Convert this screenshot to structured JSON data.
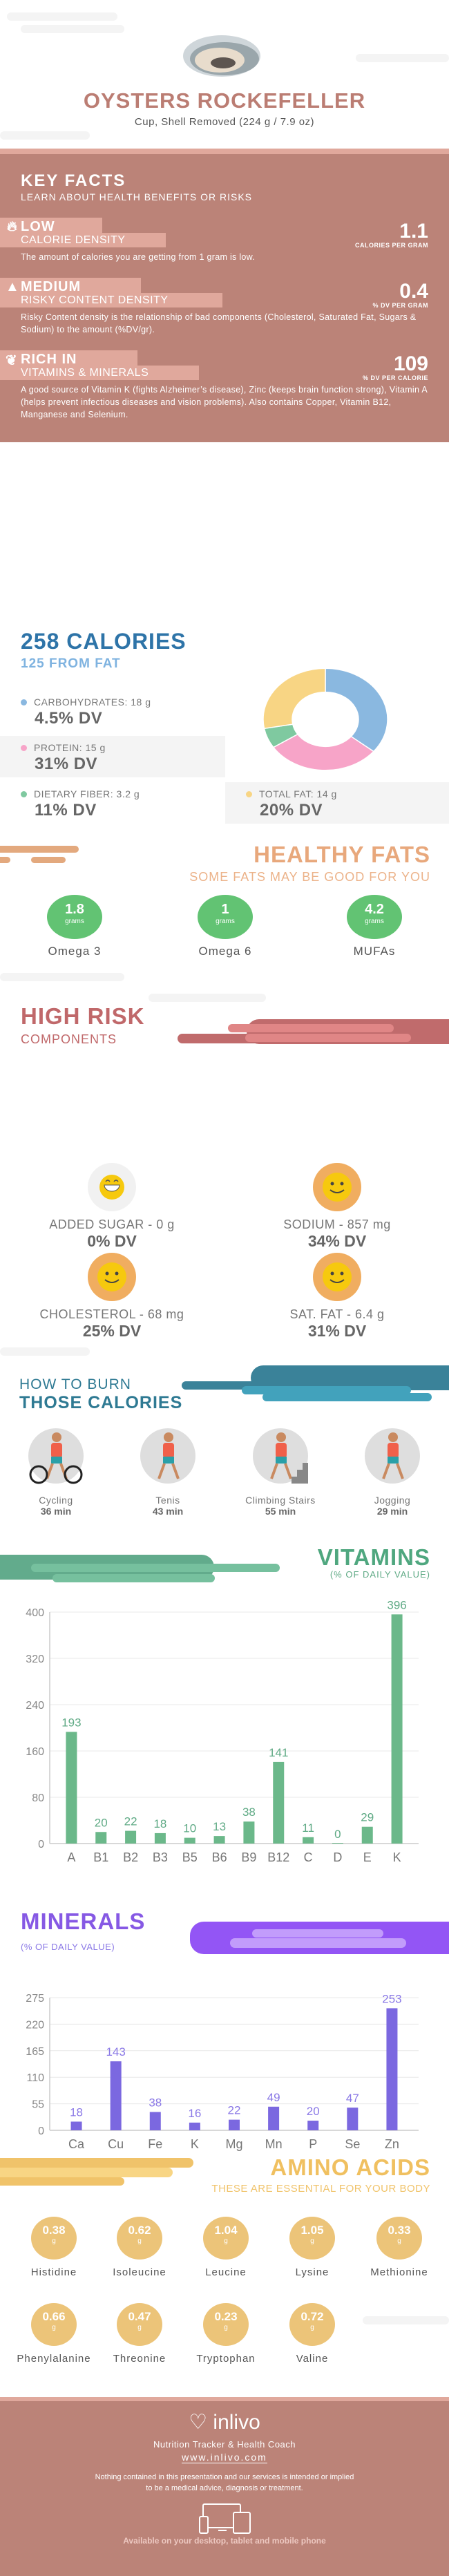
{
  "header": {
    "title": "OYSTERS ROCKEFELLER",
    "serving": "Cup, Shell Removed (224 g / 7.9 oz)",
    "image_icon": "oyster-photo"
  },
  "key_facts": {
    "title": "KEY FACTS",
    "subtitle": "LEARN ABOUT HEALTH BENEFITS OR RISKS",
    "items": [
      {
        "icon": "flame-icon",
        "level": "LOW",
        "label": "CALORIE DENSITY",
        "value": "1.1",
        "unit": "CALORIES PER GRAM",
        "desc": "The amount of calories you are getting from 1 gram is low."
      },
      {
        "icon": "warning-icon",
        "level": "MEDIUM",
        "label": "RISKY CONTENT DENSITY",
        "value": "0.4",
        "unit": "% DV PER GRAM",
        "desc": "Risky Content density is the relationship of bad components (Cholesterol, Saturated Fat, Sugars & Sodium) to the amount (%DV/gr)."
      },
      {
        "icon": "leaf-icon",
        "level": "RICH  IN",
        "label": "VITAMINS & MINERALS",
        "value": "109",
        "unit": "% DV PER CALORIE",
        "desc": "A good source of Vitamin K (fights Alzheimer’s disease), Zinc (keeps brain function strong), Vitamin A (helps prevent infectious diseases and vision problems). Also contains Copper, Vitamin B12, Manganese and Selenium."
      }
    ]
  },
  "calories": {
    "title": "258 CALORIES",
    "from_fat": "125 FROM FAT",
    "macros": [
      {
        "label": "CARBOHYDRATES: 18 g",
        "dv": "4.5% DV",
        "grams": 18,
        "color": "#8ab8e0"
      },
      {
        "label": "PROTEIN: 15 g",
        "dv": "31% DV",
        "grams": 15,
        "color": "#f7a4c8"
      },
      {
        "label": "DIETARY FIBER: 3.2 g",
        "dv": "11% DV",
        "grams": 3.2,
        "color": "#7fc9a0"
      },
      {
        "label": "TOTAL FAT: 14 g",
        "dv": "20% DV",
        "grams": 14,
        "color": "#f8d584"
      }
    ]
  },
  "healthy_fats": {
    "title": "HEALTHY FATS",
    "subtitle": "SOME FATS MAY BE GOOD FOR YOU",
    "items": [
      {
        "value": "1.8",
        "unit": "grams",
        "label": "Omega 3"
      },
      {
        "value": "1",
        "unit": "grams",
        "label": "Omega 6"
      },
      {
        "value": "4.2",
        "unit": "grams",
        "label": "MUFAs"
      }
    ]
  },
  "high_risk": {
    "title": "HIGH RISK",
    "subtitle": "COMPONENTS",
    "items": [
      {
        "label": "ADDED SUGAR - 0 g",
        "dv": "0% DV",
        "face": "grin"
      },
      {
        "label": "SODIUM - 857 mg",
        "dv": "34% DV",
        "face": "smile"
      },
      {
        "label": "CHOLESTEROL - 68 mg",
        "dv": "25% DV",
        "face": "smile"
      },
      {
        "label": "SAT. FAT - 6.4 g",
        "dv": "31% DV",
        "face": "smile"
      }
    ]
  },
  "burn": {
    "title1": "HOW TO BURN",
    "title2": "THOSE CALORIES",
    "items": [
      {
        "label": "Cycling",
        "time": "36 min"
      },
      {
        "label": "Tenis",
        "time": "43 min"
      },
      {
        "label": "Climbing Stairs",
        "time": "55 min"
      },
      {
        "label": "Jogging",
        "time": "29 min"
      }
    ]
  },
  "chart_data": [
    {
      "type": "bar",
      "title": "VITAMINS",
      "subtitle": "(% OF DAILY VALUE)",
      "categories": [
        "A",
        "B1",
        "B2",
        "B3",
        "B5",
        "B6",
        "B9",
        "B12",
        "C",
        "D",
        "E",
        "K"
      ],
      "values": [
        193,
        20,
        22,
        18,
        10,
        13,
        38,
        141,
        11,
        0,
        29,
        396
      ],
      "yticks": [
        0,
        80,
        160,
        240,
        320,
        400
      ],
      "ylim": [
        0,
        400
      ],
      "color": "#6bb88a",
      "label_color": "#5faa85",
      "grid": true
    },
    {
      "type": "bar",
      "title": "MINERALS",
      "subtitle": "(% OF DAILY VALUE)",
      "categories": [
        "Ca",
        "Cu",
        "Fe",
        "K",
        "Mg",
        "Mn",
        "P",
        "Se",
        "Zn"
      ],
      "values": [
        18,
        143,
        38,
        16,
        22,
        49,
        20,
        47,
        253
      ],
      "yticks": [
        0,
        55,
        110,
        165,
        220,
        275
      ],
      "ylim": [
        0,
        275
      ],
      "color": "#7b68e0",
      "label_color": "#8a78e6",
      "grid": true
    }
  ],
  "amino": {
    "title": "AMINO ACIDS",
    "subtitle": "THESE ARE ESSENTIAL FOR YOUR BODY",
    "items": [
      {
        "value": "0.38",
        "unit": "g",
        "label": "Histidine"
      },
      {
        "value": "0.62",
        "unit": "g",
        "label": "Isoleucine"
      },
      {
        "value": "1.04",
        "unit": "g",
        "label": "Leucine"
      },
      {
        "value": "1.05",
        "unit": "g",
        "label": "Lysine"
      },
      {
        "value": "0.33",
        "unit": "g",
        "label": "Methionine"
      },
      {
        "value": "0.66",
        "unit": "g",
        "label": "Phenylalanine"
      },
      {
        "value": "0.47",
        "unit": "g",
        "label": "Threonine"
      },
      {
        "value": "0.23",
        "unit": "g",
        "label": "Tryptophan"
      },
      {
        "value": "0.72",
        "unit": "g",
        "label": "Valine"
      }
    ]
  },
  "footer": {
    "brand": "inlivo",
    "tagline": "Nutrition Tracker & Health Coach",
    "url": "www.inlivo.com",
    "disclaimer1": "Nothing contained in this presentation and our services is intended or implied",
    "disclaimer2": "to be a medical advice, diagnosis or treatment.",
    "available": "Available on your desktop, tablet and mobile phone"
  }
}
